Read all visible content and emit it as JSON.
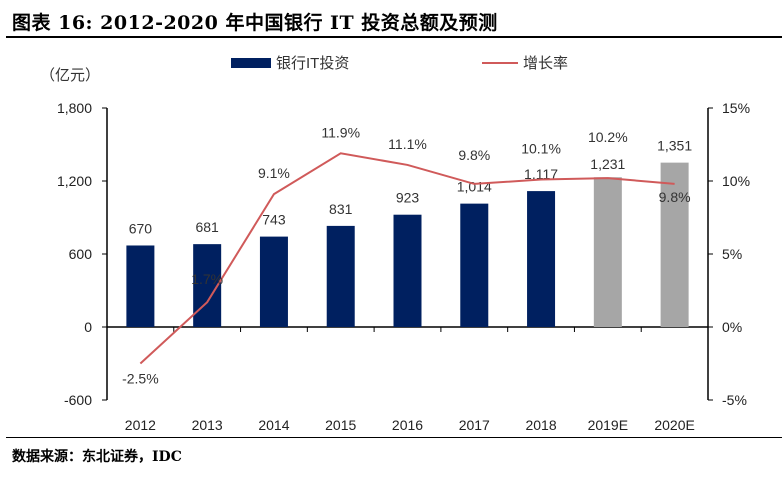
{
  "title": "图表 16:  2012-2020 年中国银行 IT 投资总额及预测",
  "source": "数据来源：东北证券，IDC",
  "colors": {
    "bar_actual": "#002060",
    "bar_forecast": "#A6A6A6",
    "line": "#D05A5A",
    "axis": "#000000"
  },
  "chart_data": {
    "type": "bar+line",
    "categories": [
      "2012",
      "2013",
      "2014",
      "2015",
      "2016",
      "2017",
      "2018",
      "2019E",
      "2020E"
    ],
    "series": [
      {
        "name": "银行IT投资",
        "type": "bar",
        "axis": "left",
        "values": [
          670,
          681,
          743,
          831,
          923,
          1014,
          1117,
          1231,
          1351
        ],
        "labels": [
          "670",
          "681",
          "743",
          "831",
          "923",
          "1,014",
          "1,117",
          "1,231",
          "1,351"
        ]
      },
      {
        "name": "增长率",
        "type": "line",
        "axis": "right",
        "values": [
          -2.5,
          1.7,
          9.1,
          11.9,
          11.1,
          9.8,
          10.1,
          10.2,
          9.8
        ],
        "labels": [
          "-2.5%",
          "1.7%",
          "9.1%",
          "11.9%",
          "11.1%",
          "9.8%",
          "10.1%",
          "10.2%",
          "9.8%"
        ]
      }
    ],
    "forecast_categories": [
      "2019E",
      "2020E"
    ],
    "left_axis": {
      "unit_label": "（亿元）",
      "range": [
        -600,
        1800
      ],
      "ticks": [
        "-600",
        "0",
        "600",
        "1,200",
        "1,800"
      ],
      "tick_values": [
        -600,
        0,
        600,
        1200,
        1800
      ]
    },
    "right_axis": {
      "range": [
        -5,
        15
      ],
      "ticks": [
        "-5%",
        "0%",
        "5%",
        "10%",
        "15%"
      ],
      "tick_values": [
        -5,
        0,
        5,
        10,
        15
      ]
    },
    "legend_placement": "top",
    "grid": false
  }
}
